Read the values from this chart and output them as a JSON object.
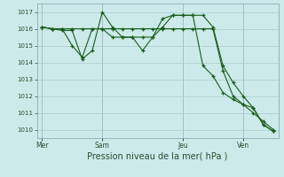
{
  "background_color": "#cceaea",
  "grid_color": "#aacccc",
  "line_color": "#1a5c1a",
  "marker": "+",
  "xlabel": "Pression niveau de la mer( hPa )",
  "ylim": [
    1009.5,
    1017.5
  ],
  "yticks": [
    1010,
    1011,
    1012,
    1013,
    1014,
    1015,
    1016,
    1017
  ],
  "day_labels": [
    "Mer",
    "Sam",
    "Jeu",
    "Ven"
  ],
  "series1": [
    1016.1,
    1016.0,
    1015.9,
    1015.9,
    1014.2,
    1014.7,
    1017.0,
    1016.1,
    1015.5,
    1015.5,
    1015.5,
    1015.5,
    1016.6,
    1016.8,
    1016.8,
    1016.8,
    1016.8,
    1016.1,
    1013.8,
    1012.8,
    1012.0,
    1011.3,
    1010.3,
    1009.9
  ],
  "series2": [
    1016.1,
    1016.0,
    1016.0,
    1015.0,
    1014.3,
    1016.0,
    1016.0,
    1015.5,
    1015.5,
    1015.5,
    1014.7,
    1015.5,
    1016.1,
    1016.8,
    1016.8,
    1016.8,
    1013.8,
    1013.2,
    1012.2,
    1011.8,
    1011.5,
    1011.3,
    1010.3,
    1009.9
  ],
  "series3": [
    1016.1,
    1016.0,
    1016.0,
    1016.0,
    1016.0,
    1016.0,
    1016.0,
    1016.0,
    1016.0,
    1016.0,
    1016.0,
    1016.0,
    1016.0,
    1016.0,
    1016.0,
    1016.0,
    1016.0,
    1016.0,
    1013.5,
    1012.0,
    1011.5,
    1011.0,
    1010.5,
    1010.0
  ],
  "num_points": 24
}
